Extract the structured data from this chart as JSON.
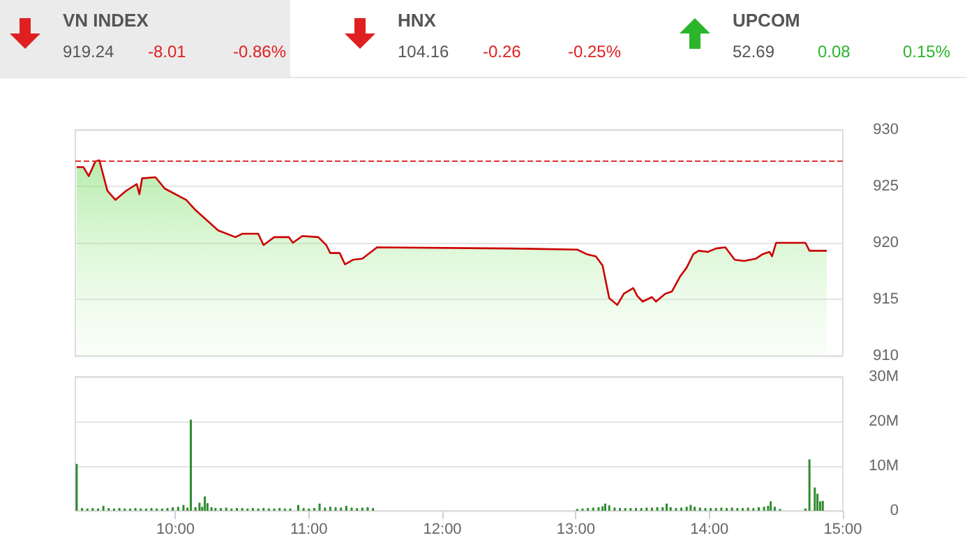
{
  "chart_data": [
    {
      "type": "other",
      "categories": [
        "VN INDEX",
        "HNX",
        "UPCOM"
      ],
      "annotations": [
        "919.24",
        "-8.01",
        "-0.86%",
        "104.16",
        "-0.26",
        "-0.25%",
        "52.69",
        "0.08",
        "0.15%"
      ]
    },
    {
      "type": "area",
      "xlim": [
        9.25,
        15
      ],
      "ylim": [
        910,
        930
      ],
      "yticks": [
        910,
        915,
        920,
        925,
        930
      ],
      "grid": "y",
      "tick_labels": "y",
      "ref_lines": [
        {
          "axis": "y",
          "value": 927.25,
          "color": "#e03030",
          "line_style": "dashed"
        }
      ],
      "series": [
        {
          "color": "#cc0000",
          "x": [
            9.26,
            9.31,
            9.35,
            9.4,
            9.43,
            9.49,
            9.55,
            9.63,
            9.71,
            9.73,
            9.75,
            9.85,
            9.92,
            10.08,
            10.15,
            10.32,
            10.45,
            10.5,
            10.62,
            10.66,
            10.74,
            10.85,
            10.88,
            10.95,
            11.07,
            11.13,
            11.16,
            11.23,
            11.27,
            11.33,
            11.4,
            11.51,
            12.5,
            13.01,
            13.08,
            13.15,
            13.2,
            13.25,
            13.31,
            13.36,
            13.43,
            13.46,
            13.5,
            13.57,
            13.6,
            13.67,
            13.72,
            13.78,
            13.83,
            13.88,
            13.92,
            13.99,
            14.05,
            14.12,
            14.19,
            14.26,
            14.35,
            14.4,
            14.45,
            14.47,
            14.5,
            14.72,
            14.75,
            14.88
          ],
          "values": [
            926.7,
            926.7,
            925.9,
            927.2,
            927.3,
            924.6,
            923.8,
            924.6,
            925.2,
            924.3,
            925.7,
            925.8,
            924.8,
            923.8,
            922.9,
            921.1,
            920.5,
            920.8,
            920.8,
            919.8,
            920.5,
            920.5,
            920,
            920.6,
            920.5,
            919.8,
            919.1,
            919.1,
            918.1,
            918.5,
            918.6,
            919.6,
            919.5,
            919.4,
            919,
            918.8,
            918,
            915.1,
            914.5,
            915.5,
            916,
            915.3,
            914.8,
            915.2,
            914.8,
            915.5,
            915.7,
            917,
            917.8,
            919,
            919.3,
            919.2,
            919.5,
            919.6,
            918.5,
            918.4,
            918.6,
            919,
            919.2,
            918.8,
            920,
            920,
            919.3,
            919.3
          ]
        }
      ]
    },
    {
      "type": "bar",
      "xlim": [
        9.25,
        15
      ],
      "xticks": [
        {
          "value": 10,
          "label": "10:00"
        },
        {
          "value": 11,
          "label": "11:00"
        },
        {
          "value": 12,
          "label": "12:00"
        },
        {
          "value": 13,
          "label": "13:00"
        },
        {
          "value": 14,
          "label": "14:00"
        },
        {
          "value": 15,
          "label": "15:00"
        }
      ],
      "ylim": [
        0,
        30
      ],
      "yticks": [
        0,
        {
          "value": 10,
          "label": "10M"
        },
        {
          "value": 20,
          "label": "20M"
        },
        {
          "value": 30,
          "label": "30M"
        }
      ],
      "grid": "y",
      "series": [
        {
          "color": "#2e8b2e",
          "x": [
            9.26,
            9.3,
            9.34,
            9.38,
            9.42,
            9.46,
            9.5,
            9.54,
            9.58,
            9.62,
            9.66,
            9.7,
            9.74,
            9.78,
            9.82,
            9.86,
            9.9,
            9.94,
            9.98,
            10.02,
            10.06,
            10.09,
            10.115,
            10.15,
            10.18,
            10.2,
            10.22,
            10.24,
            10.27,
            10.3,
            10.34,
            10.38,
            10.42,
            10.46,
            10.5,
            10.54,
            10.58,
            10.62,
            10.66,
            10.7,
            10.74,
            10.78,
            10.82,
            10.86,
            10.92,
            10.96,
            11,
            11.04,
            11.08,
            11.12,
            11.16,
            11.2,
            11.24,
            11.28,
            11.32,
            11.36,
            11.4,
            11.44,
            11.48,
            13.01,
            13.05,
            13.09,
            13.13,
            13.17,
            13.2,
            13.22,
            13.25,
            13.29,
            13.33,
            13.37,
            13.41,
            13.45,
            13.49,
            13.53,
            13.57,
            13.61,
            13.65,
            13.68,
            13.71,
            13.75,
            13.79,
            13.83,
            13.86,
            13.89,
            13.93,
            13.97,
            14.01,
            14.05,
            14.09,
            14.13,
            14.17,
            14.21,
            14.25,
            14.29,
            14.33,
            14.37,
            14.41,
            14.44,
            14.46,
            14.49,
            14.53,
            14.72,
            14.75,
            14.79,
            14.81,
            14.83,
            14.85
          ],
          "values": [
            10.5,
            0.6,
            0.5,
            0.6,
            0.5,
            1.1,
            0.6,
            0.5,
            0.6,
            0.5,
            0.5,
            0.6,
            0.5,
            0.5,
            0.6,
            0.5,
            0.5,
            0.6,
            0.8,
            0.9,
            1.3,
            0.7,
            20.4,
            0.8,
            1.8,
            0.9,
            3.2,
            1.7,
            0.8,
            0.6,
            0.6,
            0.7,
            0.5,
            0.6,
            0.6,
            0.5,
            0.6,
            0.5,
            0.6,
            0.5,
            0.5,
            0.6,
            0.5,
            0.5,
            1.3,
            0.6,
            0.5,
            0.6,
            1.6,
            0.7,
            0.9,
            0.8,
            0.7,
            1.1,
            0.7,
            0.6,
            0.7,
            0.8,
            0.6,
            0.4,
            0.5,
            0.6,
            0.7,
            0.8,
            1,
            1.6,
            1.2,
            0.7,
            0.6,
            0.6,
            0.6,
            0.6,
            0.6,
            0.7,
            0.7,
            0.8,
            0.8,
            1.6,
            0.8,
            0.6,
            0.7,
            0.9,
            1.3,
            0.9,
            0.7,
            0.6,
            0.6,
            0.6,
            0.7,
            0.6,
            0.7,
            0.6,
            0.6,
            0.7,
            0.6,
            0.8,
            0.9,
            1.1,
            2.1,
            0.9,
            0.4,
            0.5,
            11.5,
            5.2,
            3.8,
            2.1,
            2.2
          ]
        }
      ]
    }
  ]
}
